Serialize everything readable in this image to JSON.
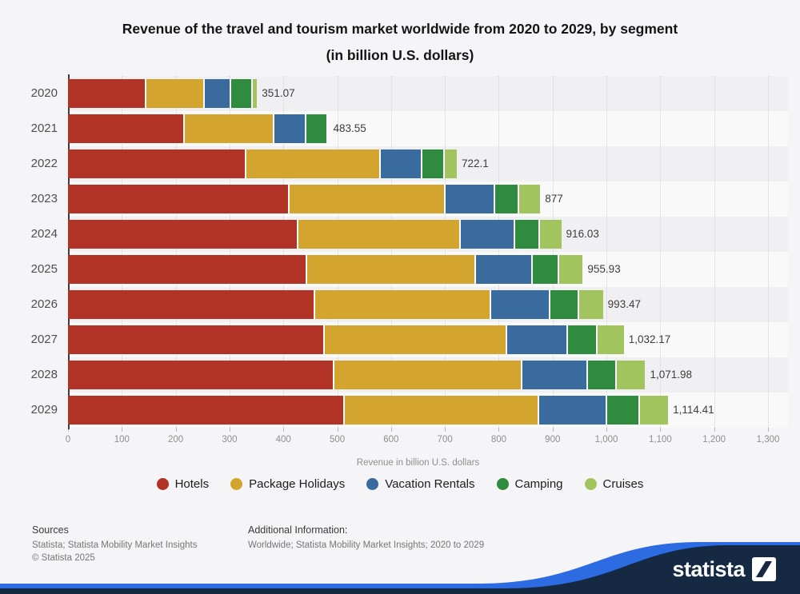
{
  "title": {
    "line1": "Revenue of the travel and tourism market worldwide from 2020 to 2029, by segment",
    "line2": "(in billion U.S. dollars)"
  },
  "chart_data": {
    "type": "bar",
    "orientation": "horizontal",
    "stacked": true,
    "title": "Revenue of the travel and tourism market worldwide from 2020 to 2029, by segment (in billion U.S. dollars)",
    "categories": [
      "2020",
      "2021",
      "2022",
      "2023",
      "2024",
      "2025",
      "2026",
      "2027",
      "2028",
      "2029"
    ],
    "series": [
      {
        "name": "Hotels",
        "color": "#b13325",
        "values": [
          143.3,
          214.5,
          328.9,
          408.0,
          425.4,
          441.3,
          456.1,
          473.3,
          491.7,
          510.5
        ]
      },
      {
        "name": "Package Holidays",
        "color": "#d3a52e",
        "values": [
          108.4,
          165.6,
          248.4,
          290.6,
          300.4,
          314.2,
          326.7,
          339.1,
          349.4,
          361.3
        ]
      },
      {
        "name": "Vacation Rentals",
        "color": "#3a6b9e",
        "values": [
          49.0,
          60.1,
          78.2,
          92.5,
          101.5,
          105.4,
          110.3,
          112.9,
          121.3,
          127.2
        ]
      },
      {
        "name": "Camping",
        "color": "#2f8b3e",
        "values": [
          40.0,
          39.7,
          40.6,
          43.7,
          46.1,
          48.1,
          53.0,
          55.4,
          54.4,
          60.9
        ]
      },
      {
        "name": "Cruises",
        "color": "#a2c45e",
        "values": [
          10.37,
          3.65,
          26.0,
          42.2,
          42.63,
          46.93,
          47.37,
          51.47,
          55.18,
          54.51
        ]
      }
    ],
    "totals": [
      351.07,
      483.55,
      722.1,
      877,
      916.03,
      955.93,
      993.47,
      1032.17,
      1071.98,
      1114.41
    ],
    "total_labels": [
      "351.07",
      "483.55",
      "722.1",
      "877",
      "916.03",
      "955.93",
      "993.47",
      "1,032.17",
      "1,071.98",
      "1,114.41"
    ],
    "xlabel": "Revenue in billion U.S. dollars",
    "xlim": [
      0,
      1300
    ],
    "x_ticks": [
      "0",
      "100",
      "200",
      "300",
      "400",
      "500",
      "600",
      "700",
      "800",
      "900",
      "1,000",
      "1,100",
      "1,200",
      "1,300"
    ],
    "grid": "vertical-dotted",
    "legend_position": "bottom"
  },
  "footer": {
    "sources_heading": "Sources",
    "sources_line": "Statista; Statista Mobility Market Insights",
    "copyright": "© Statista 2025",
    "additional_heading": "Additional Information:",
    "additional_line": "Worldwide; Statista Mobility Market Insights; 2020 to 2029"
  },
  "branding": {
    "wordmark": "statista",
    "navy": "#152a42",
    "blue": "#2d6be2"
  }
}
